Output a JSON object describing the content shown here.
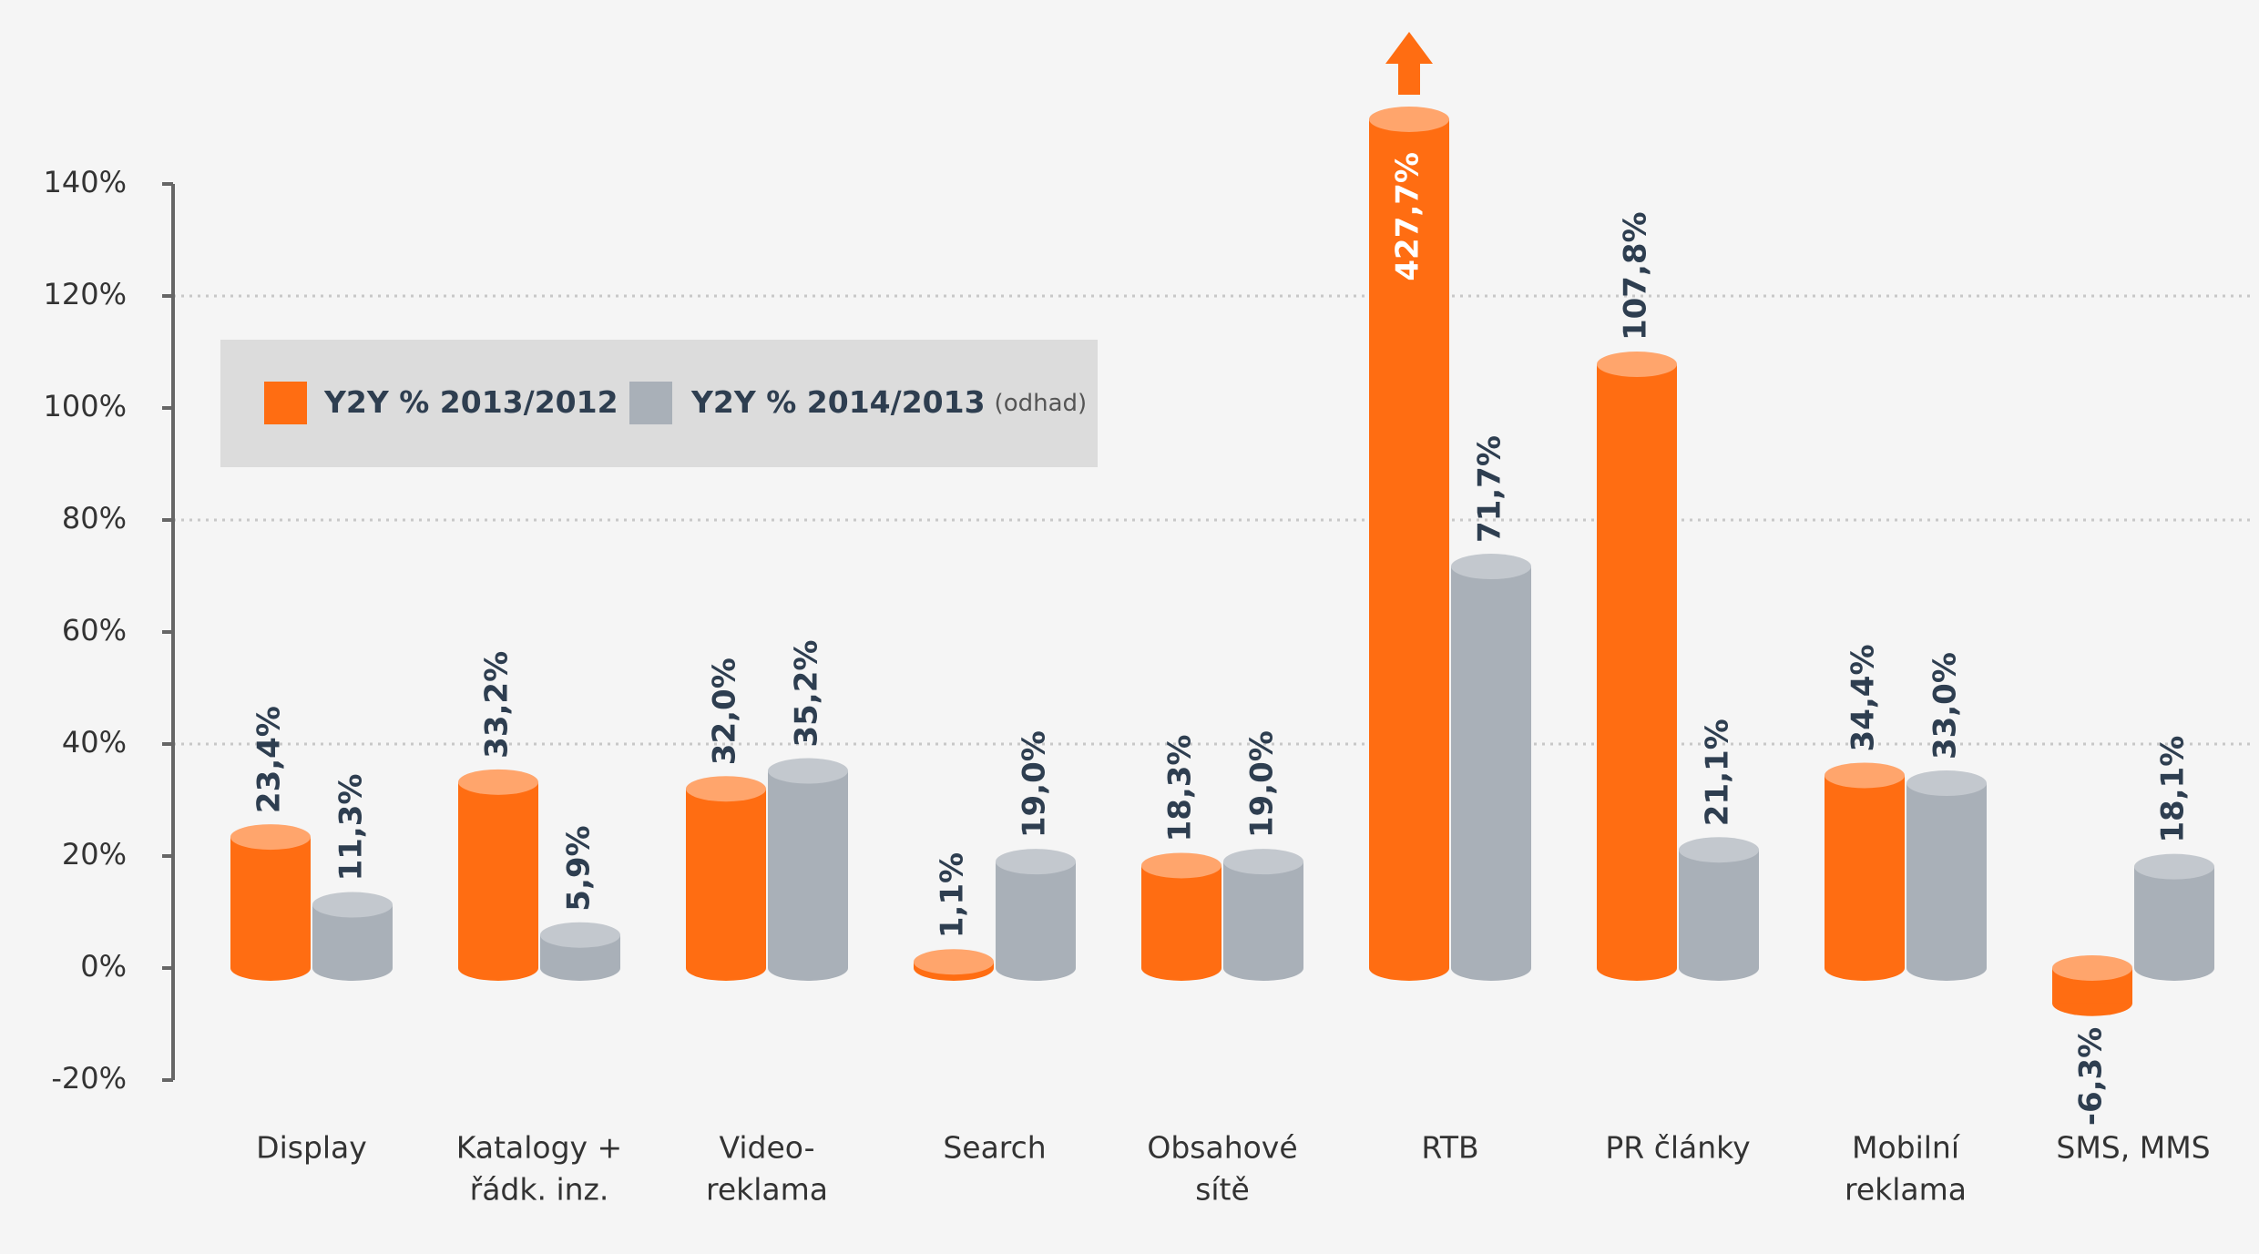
{
  "chart_data": {
    "type": "bar",
    "categories": [
      [
        "Display"
      ],
      [
        "Katalogy +",
        "řádk. inz."
      ],
      [
        "Video-",
        "reklama"
      ],
      [
        "Search"
      ],
      [
        "Obsahové",
        "sítě"
      ],
      [
        "RTB"
      ],
      [
        "PR články"
      ],
      [
        "Mobilní",
        "reklama"
      ],
      [
        "SMS, MMS"
      ]
    ],
    "series": [
      {
        "name": "Y2Y % 2013/2012",
        "color": "#ff6d12",
        "top_color": "#ffa56c",
        "values": [
          23.4,
          33.2,
          32.0,
          1.1,
          18.3,
          427.7,
          107.8,
          34.4,
          -6.3
        ],
        "value_labels": [
          "23,4%",
          "33,2%",
          "32,0%",
          "1,1%",
          "18,3%",
          "427,7%",
          "107,8%",
          "34,4%",
          "-6,3%"
        ]
      },
      {
        "name": "Y2Y % 2014/2013",
        "name_note": "(odhad)",
        "color": "#a9b0b8",
        "top_color": "#c3c8ce",
        "values": [
          11.3,
          5.9,
          35.2,
          19.0,
          19.0,
          71.7,
          21.1,
          33.0,
          18.1
        ],
        "value_labels": [
          "11,3%",
          "5,9%",
          "35,2%",
          "19,0%",
          "19,0%",
          "71,7%",
          "21,1%",
          "33,0%",
          "18,1%"
        ]
      }
    ],
    "ylim": [
      -20,
      140
    ],
    "yticks": [
      {
        "value": -20,
        "label": "-20%"
      },
      {
        "value": 0,
        "label": "0%"
      },
      {
        "value": 20,
        "label": "20%"
      },
      {
        "value": 40,
        "label": "40%"
      },
      {
        "value": 60,
        "label": "60%"
      },
      {
        "value": 80,
        "label": "80%"
      },
      {
        "value": 100,
        "label": "100%"
      },
      {
        "value": 120,
        "label": "120%"
      },
      {
        "value": 140,
        "label": "140%"
      }
    ],
    "grid_lines": [
      40,
      80,
      120
    ],
    "legend": "top-left"
  }
}
